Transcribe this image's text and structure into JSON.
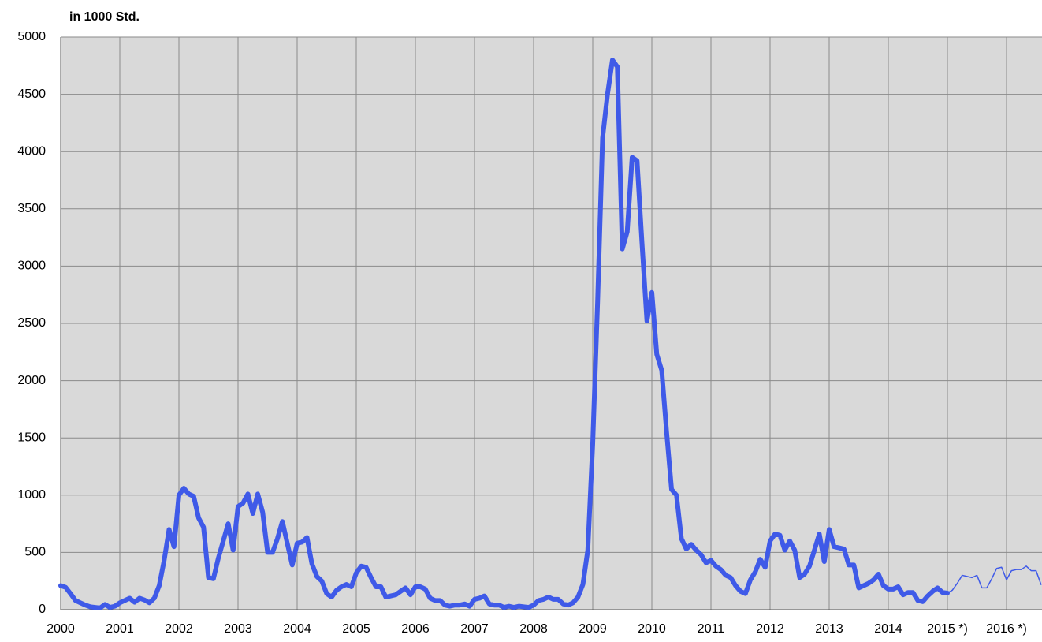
{
  "chart_data": {
    "type": "line",
    "title": "in 1000 Std.",
    "categories": [
      "2000",
      null,
      null,
      null,
      null,
      null,
      null,
      null,
      null,
      null,
      null,
      null,
      "2001",
      null,
      null,
      null,
      null,
      null,
      null,
      null,
      null,
      null,
      null,
      null,
      "2002",
      null,
      null,
      null,
      null,
      null,
      null,
      null,
      null,
      null,
      null,
      null,
      "2003",
      null,
      null,
      null,
      null,
      null,
      null,
      null,
      null,
      null,
      null,
      null,
      "2004",
      null,
      null,
      null,
      null,
      null,
      null,
      null,
      null,
      null,
      null,
      null,
      "2005",
      null,
      null,
      null,
      null,
      null,
      null,
      null,
      null,
      null,
      null,
      null,
      "2006",
      null,
      null,
      null,
      null,
      null,
      null,
      null,
      null,
      null,
      null,
      null,
      "2007",
      null,
      null,
      null,
      null,
      null,
      null,
      null,
      null,
      null,
      null,
      null,
      "2008",
      null,
      null,
      null,
      null,
      null,
      null,
      null,
      null,
      null,
      null,
      null,
      "2009",
      null,
      null,
      null,
      null,
      null,
      null,
      null,
      null,
      null,
      null,
      null,
      "2010",
      null,
      null,
      null,
      null,
      null,
      null,
      null,
      null,
      null,
      null,
      null,
      "2011",
      null,
      null,
      null,
      null,
      null,
      null,
      null,
      null,
      null,
      null,
      null,
      "2012",
      null,
      null,
      null,
      null,
      null,
      null,
      null,
      null,
      null,
      null,
      null,
      "2013",
      null,
      null,
      null,
      null,
      null,
      null,
      null,
      null,
      null,
      null,
      null,
      "2014",
      null,
      null,
      null,
      null,
      null,
      null,
      null,
      null,
      null,
      null,
      null,
      "2015 *)",
      null,
      null,
      null,
      null,
      null,
      null,
      null,
      null,
      null,
      null,
      null,
      "2016 *)",
      null,
      null,
      null,
      null,
      null,
      null,
      null
    ],
    "series": [
      {
        "color": "#3f5ae8",
        "width": 6,
        "values": [
          210,
          195,
          140,
          80,
          60,
          40,
          25,
          20,
          15,
          45,
          20,
          30,
          60,
          80,
          100,
          65,
          100,
          85,
          60,
          100,
          210,
          430,
          700,
          550,
          1000,
          1060,
          1010,
          990,
          800,
          720,
          280,
          270,
          450,
          600,
          750,
          520,
          900,
          930,
          1010,
          840,
          1010,
          850,
          500,
          500,
          620,
          770,
          580,
          390,
          580,
          590,
          630,
          400,
          290,
          250,
          140,
          110,
          170,
          200,
          220,
          200,
          320,
          380,
          370,
          280,
          200,
          200,
          110,
          120,
          130,
          160,
          190,
          130,
          200,
          200,
          180,
          100,
          80,
          80,
          40,
          30,
          40,
          40,
          50,
          30,
          90,
          100,
          120,
          50,
          40,
          40,
          20,
          30,
          20,
          30,
          25,
          20,
          40,
          80,
          90,
          110,
          90,
          90,
          50,
          40,
          60,
          110,
          220,
          520,
          1450,
          2700,
          4120,
          4500,
          4800,
          4740,
          3150,
          3300,
          3950,
          3920,
          3200,
          2520,
          2770,
          2230,
          2090,
          1550,
          1050,
          1000,
          620,
          530,
          570,
          520,
          480,
          410,
          430,
          380,
          350,
          300,
          280,
          210,
          160,
          140,
          260,
          330,
          440,
          370,
          600,
          660,
          650,
          520,
          600,
          520,
          280,
          310,
          380,
          520,
          660,
          420,
          700,
          550,
          540,
          530,
          390,
          390,
          190,
          210,
          230,
          260,
          310,
          210,
          180,
          180,
          200,
          130,
          150,
          150,
          80,
          70,
          120,
          160,
          190,
          150,
          145,
          null,
          null,
          null,
          null,
          null,
          null,
          null,
          null,
          null,
          null,
          null,
          null,
          null,
          null,
          null,
          null,
          null,
          null,
          null
        ]
      },
      {
        "color": "#3f5ae8",
        "width": 1.5,
        "values": [
          null,
          null,
          null,
          null,
          null,
          null,
          null,
          null,
          null,
          null,
          null,
          null,
          null,
          null,
          null,
          null,
          null,
          null,
          null,
          null,
          null,
          null,
          null,
          null,
          null,
          null,
          null,
          null,
          null,
          null,
          null,
          null,
          null,
          null,
          null,
          null,
          null,
          null,
          null,
          null,
          null,
          null,
          null,
          null,
          null,
          null,
          null,
          null,
          null,
          null,
          null,
          null,
          null,
          null,
          null,
          null,
          null,
          null,
          null,
          null,
          null,
          null,
          null,
          null,
          null,
          null,
          null,
          null,
          null,
          null,
          null,
          null,
          null,
          null,
          null,
          null,
          null,
          null,
          null,
          null,
          null,
          null,
          null,
          null,
          null,
          null,
          null,
          null,
          null,
          null,
          null,
          null,
          null,
          null,
          null,
          null,
          null,
          null,
          null,
          null,
          null,
          null,
          null,
          null,
          null,
          null,
          null,
          null,
          null,
          null,
          null,
          null,
          null,
          null,
          null,
          null,
          null,
          null,
          null,
          null,
          null,
          null,
          null,
          null,
          null,
          null,
          null,
          null,
          null,
          null,
          null,
          null,
          null,
          null,
          null,
          null,
          null,
          null,
          null,
          null,
          null,
          null,
          null,
          null,
          null,
          null,
          null,
          null,
          null,
          null,
          null,
          null,
          null,
          null,
          null,
          null,
          null,
          null,
          null,
          null,
          null,
          null,
          null,
          null,
          null,
          null,
          null,
          null,
          null,
          null,
          null,
          null,
          null,
          null,
          null,
          null,
          null,
          null,
          null,
          null,
          145,
          170,
          230,
          300,
          290,
          280,
          300,
          190,
          190,
          270,
          360,
          370,
          260,
          340,
          350,
          350,
          380,
          340,
          340,
          220
        ]
      }
    ],
    "ylim": [
      0,
      5000
    ],
    "yticks": [
      0,
      500,
      1000,
      1500,
      2000,
      2500,
      3000,
      3500,
      4000,
      4500,
      5000
    ],
    "grid": true
  }
}
